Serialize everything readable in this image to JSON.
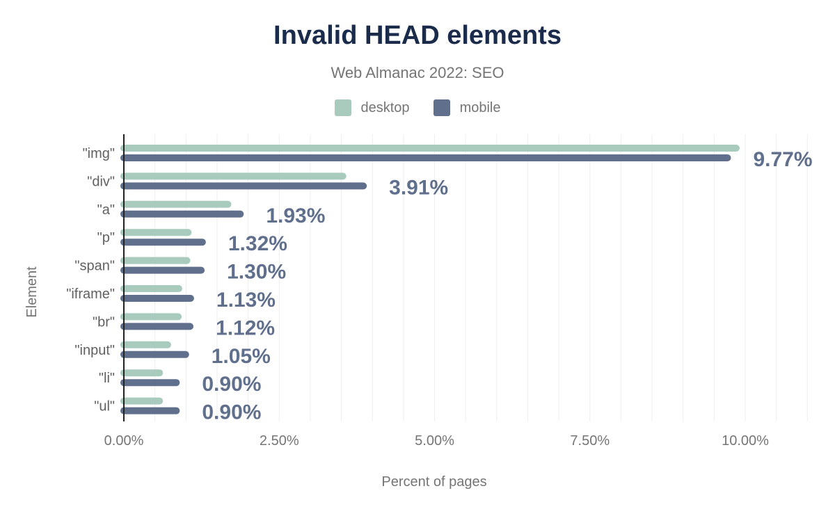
{
  "chart_data": {
    "type": "bar",
    "orientation": "horizontal",
    "title": "Invalid HEAD elements",
    "subtitle": "Web Almanac 2022: SEO",
    "xlabel": "Percent of pages",
    "ylabel": "Element",
    "xlim": [
      0,
      10
    ],
    "x_ticks": [
      "0.00%",
      "2.50%",
      "5.00%",
      "7.50%",
      "10.00%"
    ],
    "grid": true,
    "legend_placement": "top",
    "categories": [
      "\"img\"",
      "\"div\"",
      "\"a\"",
      "\"p\"",
      "\"span\"",
      "\"iframe\"",
      "\"br\"",
      "\"input\"",
      "\"li\"",
      "\"ul\""
    ],
    "series": [
      {
        "name": "desktop",
        "color": "#a8cbbd",
        "values": [
          9.91,
          3.58,
          1.73,
          1.09,
          1.07,
          0.94,
          0.93,
          0.76,
          0.63,
          0.63
        ]
      },
      {
        "name": "mobile",
        "color": "#5f6f8c",
        "values": [
          9.77,
          3.91,
          1.93,
          1.32,
          1.3,
          1.13,
          1.12,
          1.05,
          0.9,
          0.9
        ],
        "data_labels": [
          "9.77%",
          "3.91%",
          "1.93%",
          "1.32%",
          "1.30%",
          "1.13%",
          "1.12%",
          "1.05%",
          "0.90%",
          "0.90%"
        ]
      }
    ]
  }
}
